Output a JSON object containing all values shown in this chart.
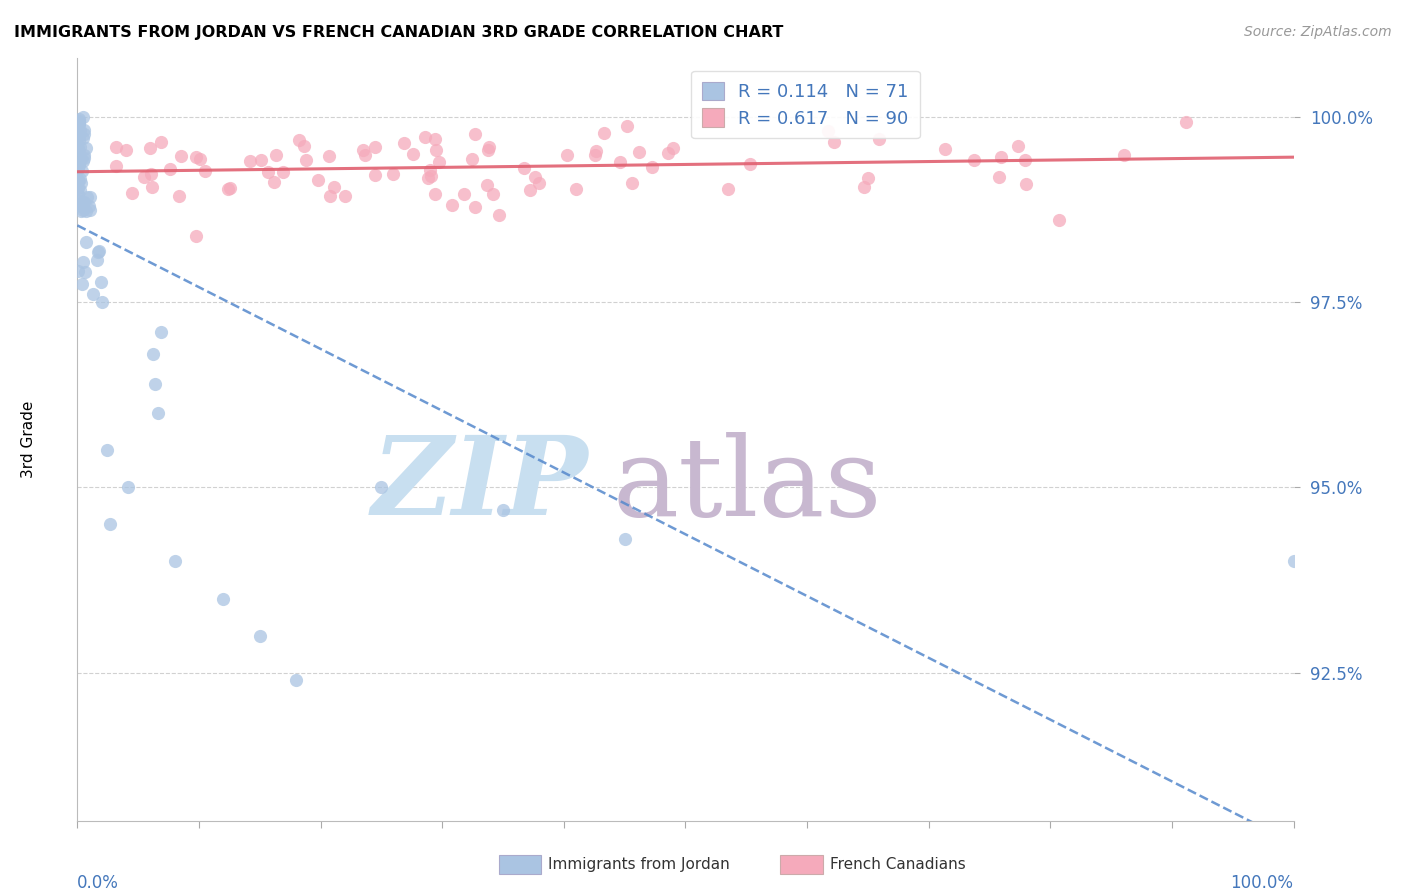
{
  "title": "IMMIGRANTS FROM JORDAN VS FRENCH CANADIAN 3RD GRADE CORRELATION CHART",
  "source": "Source: ZipAtlas.com",
  "ylabel": "3rd Grade",
  "yaxis_ticks": [
    "100.0%",
    "97.5%",
    "95.0%",
    "92.5%"
  ],
  "yaxis_tick_vals": [
    1.0,
    0.975,
    0.95,
    0.925
  ],
  "xmin": 0.0,
  "xmax": 1.0,
  "ymin": 0.905,
  "ymax": 1.008,
  "jordan_R": 0.114,
  "jordan_N": 71,
  "french_R": 0.617,
  "french_N": 90,
  "jordan_color": "#aac4e2",
  "french_color": "#f5aabb",
  "jordan_line_color": "#5588cc",
  "french_line_color": "#e06070",
  "legend_label_jordan": "Immigrants from Jordan",
  "legend_label_french": "French Canadians",
  "watermark_zip": "ZIP",
  "watermark_atlas": "atlas",
  "watermark_color_zip": "#c8dff0",
  "watermark_color_atlas": "#c8b8d0"
}
